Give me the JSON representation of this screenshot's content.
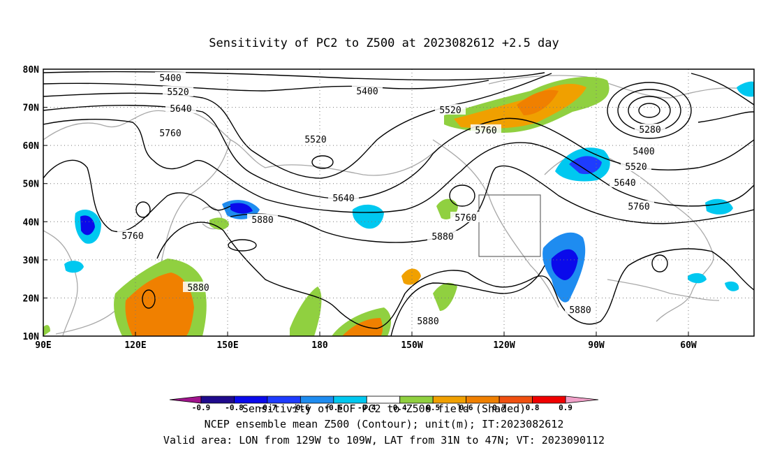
{
  "title": "Sensitivity of PC2 to Z500 at 2023082612 +2.5 day",
  "lat_labels": [
    "80N",
    "70N",
    "60N",
    "50N",
    "40N",
    "30N",
    "20N",
    "10N"
  ],
  "lon_labels": [
    "90E",
    "120E",
    "150E",
    "180",
    "150W",
    "120W",
    "90W",
    "60W"
  ],
  "contour_labels": [
    5400,
    5520,
    5640,
    5760,
    5400,
    5520,
    5760,
    5520,
    5640,
    5760,
    5880,
    5880,
    5760,
    5880,
    5880,
    5880,
    5280,
    5400,
    5520,
    5640,
    5760
  ],
  "colorbar": {
    "levels": [
      -0.9,
      -0.8,
      -0.7,
      -0.6,
      -0.5,
      -0.4,
      0.4,
      0.5,
      0.6,
      0.7,
      0.8,
      0.9
    ],
    "colors": [
      "#1f0a8c",
      "#0a0aeb",
      "#1e3cff",
      "#1e8cf0",
      "#00c8f0",
      "#ffffff",
      "#90d040",
      "#f0a000",
      "#f08000",
      "#f05010",
      "#f00000"
    ],
    "under_color": "#a0148c",
    "over_color": "#f0a0c8"
  },
  "footer": [
    "Sensitivity of EOF PC2 to Z500 field (Shaded)",
    "NCEP ensemble mean Z500 (Contour); unit(m); IT:2023082612",
    "Valid area: LON from 129W to 109W, LAT from 31N to 47N; VT: 2023090112"
  ]
}
